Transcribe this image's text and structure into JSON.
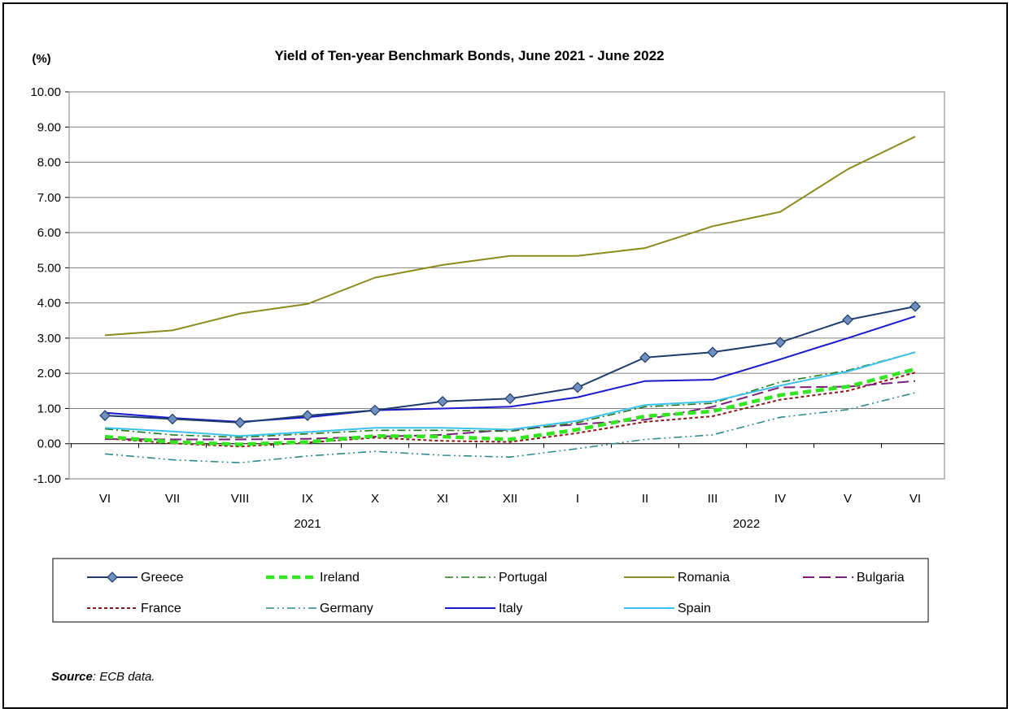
{
  "chart_data": {
    "type": "line",
    "title": "Yield of Ten-year Benchmark Bonds, June 2021 - June 2022",
    "ylabel": "(%)",
    "xlabel": "",
    "categories": [
      "VI",
      "VII",
      "VIII",
      "IX",
      "X",
      "XI",
      "XII",
      "I",
      "II",
      "III",
      "IV",
      "V",
      "VI"
    ],
    "year_labels": [
      {
        "label": "2021",
        "at": 3
      },
      {
        "label": "2022",
        "at": 9.5
      }
    ],
    "ylim": [
      -1,
      10
    ],
    "yticks": [
      -1,
      0,
      1,
      2,
      3,
      4,
      5,
      6,
      7,
      8,
      9,
      10
    ],
    "ytick_labels": [
      "-1.00",
      "0.00",
      "1.00",
      "2.00",
      "3.00",
      "4.00",
      "5.00",
      "6.00",
      "7.00",
      "8.00",
      "9.00",
      "10.00"
    ],
    "grid": true,
    "legend": "bottom",
    "series": [
      {
        "name": "Romania",
        "color": "#8b8b1e",
        "style": "solid",
        "values": [
          3.08,
          3.22,
          3.7,
          3.97,
          4.72,
          5.08,
          5.34,
          5.34,
          5.56,
          6.18,
          6.59,
          7.8,
          8.73
        ]
      },
      {
        "name": "Germany",
        "color": "#2e8b8b",
        "style": "dashdotdot",
        "values": [
          -0.29,
          -0.46,
          -0.54,
          -0.35,
          -0.22,
          -0.33,
          -0.38,
          -0.14,
          0.12,
          0.25,
          0.75,
          0.97,
          1.45
        ]
      },
      {
        "name": "France",
        "color": "#8b1a1a",
        "style": "dotted",
        "values": [
          0.15,
          0.01,
          -0.08,
          0.03,
          0.17,
          0.08,
          0.05,
          0.3,
          0.62,
          0.78,
          1.25,
          1.5,
          2.02
        ]
      },
      {
        "name": "Bulgaria",
        "color": "#7a1f7a",
        "style": "longdash",
        "values": [
          0.13,
          0.12,
          0.12,
          0.14,
          0.2,
          0.25,
          0.4,
          0.55,
          0.68,
          1.05,
          1.6,
          1.62,
          1.78
        ]
      },
      {
        "name": "Portugal",
        "color": "#1e7a1e",
        "style": "dashdot",
        "values": [
          0.42,
          0.25,
          0.18,
          0.28,
          0.38,
          0.38,
          0.35,
          0.6,
          1.05,
          1.15,
          1.75,
          2.08,
          2.6
        ]
      },
      {
        "name": "Ireland",
        "color": "#33e61f",
        "style": "thickdash",
        "values": [
          0.2,
          0.05,
          -0.02,
          0.05,
          0.22,
          0.2,
          0.12,
          0.4,
          0.78,
          0.92,
          1.38,
          1.62,
          2.12
        ]
      },
      {
        "name": "Spain",
        "color": "#3ac2ec",
        "style": "solid",
        "values": [
          0.45,
          0.35,
          0.22,
          0.33,
          0.45,
          0.45,
          0.4,
          0.65,
          1.1,
          1.2,
          1.65,
          2.05,
          2.6
        ]
      },
      {
        "name": "Italy",
        "color": "#1a1acc",
        "style": "solid",
        "values": [
          0.88,
          0.73,
          0.62,
          0.75,
          0.95,
          1.0,
          1.05,
          1.32,
          1.78,
          1.82,
          2.4,
          3.0,
          3.62
        ]
      },
      {
        "name": "Greece",
        "color": "#1f3d6b",
        "style": "solid",
        "marker": "diamond",
        "values": [
          0.8,
          0.7,
          0.6,
          0.8,
          0.95,
          1.2,
          1.28,
          1.6,
          2.45,
          2.6,
          2.88,
          3.52,
          3.9
        ]
      }
    ],
    "legend_order": [
      "Greece",
      "Ireland",
      "Portugal",
      "Romania",
      "Bulgaria",
      "France",
      "Germany",
      "Italy",
      "Spain"
    ]
  },
  "source": {
    "label": "Source",
    "text": ": ECB data."
  },
  "colors": {
    "axis": "#000000",
    "grid": "#808080",
    "marker_fill": "#6f8fc0"
  }
}
